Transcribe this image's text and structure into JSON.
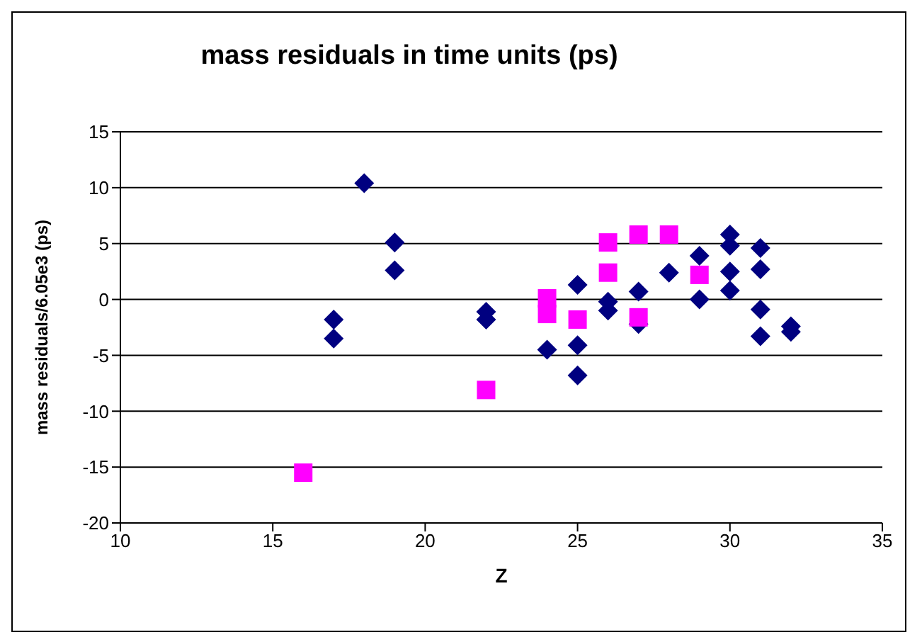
{
  "chart_data": {
    "type": "scatter",
    "title": "mass residuals in time units (ps)",
    "xlabel": "Z",
    "ylabel": "mass residuals/6.05e3 (ps)",
    "xlim": [
      10,
      35
    ],
    "xticks": [
      10,
      15,
      20,
      25,
      30,
      35
    ],
    "ylim": [
      -20,
      15
    ],
    "yticks": [
      -20,
      -15,
      -10,
      -5,
      0,
      5,
      10,
      15
    ],
    "grid": "y",
    "legend": false,
    "series": [
      {
        "color": "#000080",
        "marker": "diamond",
        "x": [
          17,
          17,
          18,
          19,
          19,
          22,
          22,
          24,
          25,
          25,
          25,
          26,
          26,
          27,
          27,
          28,
          29,
          29,
          30,
          30,
          30,
          30,
          31,
          31,
          31,
          31,
          32,
          32
        ],
        "values": [
          -1.8,
          -3.5,
          10.4,
          5.1,
          2.6,
          -1.1,
          -1.8,
          -4.5,
          1.3,
          -4.1,
          -6.8,
          -0.2,
          -1.0,
          0.7,
          -2.2,
          2.4,
          3.9,
          0,
          5.8,
          4.8,
          2.5,
          0.8,
          4.6,
          2.7,
          -0.9,
          -3.3,
          -2.4,
          -2.9
        ]
      },
      {
        "color": "#ff00ff",
        "marker": "square",
        "x": [
          16,
          22,
          24,
          24,
          25,
          26,
          26,
          27,
          27,
          28,
          29
        ],
        "values": [
          -15.5,
          -8.1,
          0.1,
          -1.3,
          -1.8,
          5.1,
          2.4,
          5.8,
          -1.6,
          5.8,
          2.2
        ]
      }
    ]
  }
}
